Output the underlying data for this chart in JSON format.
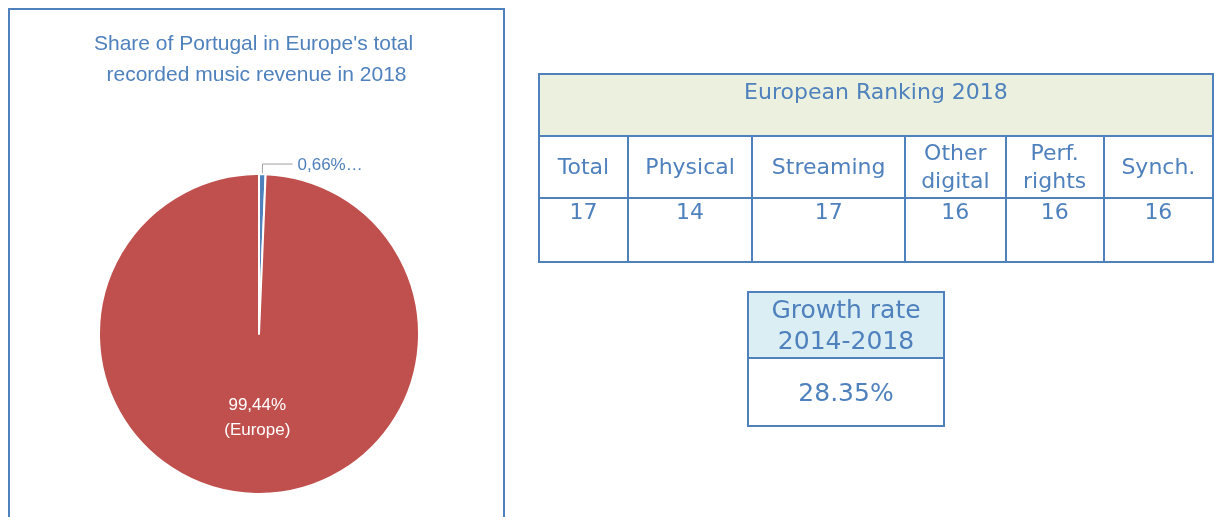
{
  "chart_data": [
    {
      "type": "pie",
      "title": "Share of Portugal in Europe's total recorded music revenue in 2018",
      "categories": [
        null,
        "(Europe)"
      ],
      "values": [
        0.66,
        99.44
      ],
      "colors": [
        "#4f81bd",
        "#c0504d"
      ],
      "value_labels": [
        "0,66%…",
        "99,44%"
      ]
    },
    {
      "type": "other",
      "title": "European Ranking 2018",
      "categories": [
        "Total",
        "Physical",
        "Streaming",
        "Other digital",
        "Perf. rights",
        "Synch."
      ],
      "values": [
        17,
        14,
        17,
        16,
        16,
        16
      ],
      "data_labels": true
    },
    {
      "type": "other",
      "title": "Growth rate 2014-2018",
      "values": [
        28.35
      ],
      "value_labels": [
        "28.35%"
      ]
    }
  ]
}
